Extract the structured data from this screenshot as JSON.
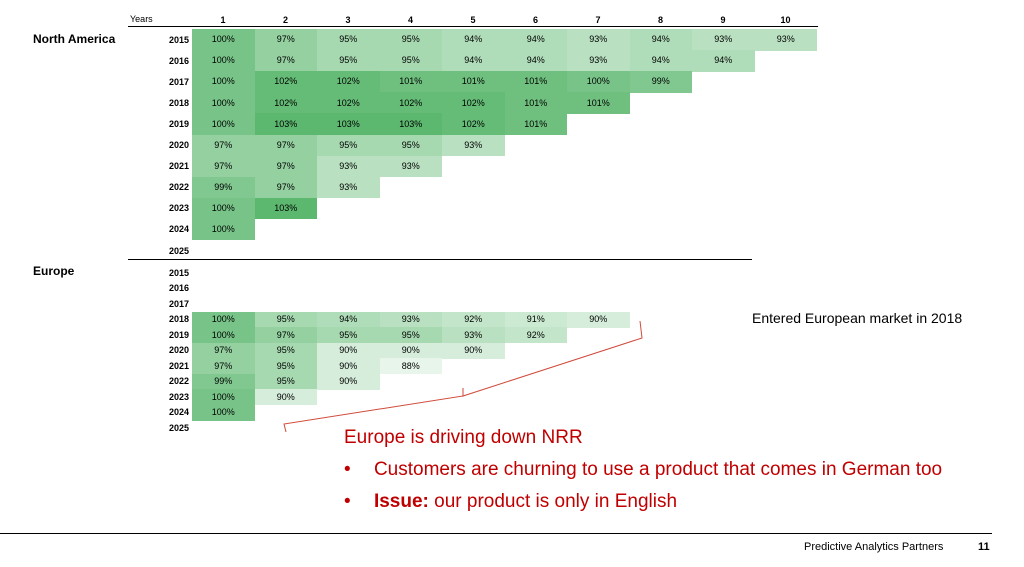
{
  "chart_data": {
    "type": "heatmap",
    "x_header": "Years",
    "columns": [
      "1",
      "2",
      "3",
      "4",
      "5",
      "6",
      "7",
      "8",
      "9",
      "10"
    ],
    "cohort_years": [
      "2015",
      "2016",
      "2017",
      "2018",
      "2019",
      "2020",
      "2021",
      "2022",
      "2023",
      "2024",
      "2025"
    ],
    "color_low": "#e8f5ea",
    "color_high": "#5cb86f",
    "value_range": [
      88,
      103
    ],
    "regions": [
      {
        "name": "North America",
        "rows": [
          {
            "year": "2015",
            "values": [
              100,
              97,
              95,
              95,
              94,
              94,
              93,
              94,
              93,
              93
            ]
          },
          {
            "year": "2016",
            "values": [
              100,
              97,
              95,
              95,
              94,
              94,
              93,
              94,
              94
            ]
          },
          {
            "year": "2017",
            "values": [
              100,
              102,
              102,
              101,
              101,
              101,
              100,
              99
            ]
          },
          {
            "year": "2018",
            "values": [
              100,
              102,
              102,
              102,
              102,
              101,
              101
            ]
          },
          {
            "year": "2019",
            "values": [
              100,
              103,
              103,
              103,
              102,
              101
            ]
          },
          {
            "year": "2020",
            "values": [
              97,
              97,
              95,
              95,
              93
            ]
          },
          {
            "year": "2021",
            "values": [
              97,
              97,
              93,
              93
            ]
          },
          {
            "year": "2022",
            "values": [
              99,
              97,
              93
            ]
          },
          {
            "year": "2023",
            "values": [
              100,
              103
            ]
          },
          {
            "year": "2024",
            "values": [
              100
            ]
          },
          {
            "year": "2025",
            "values": []
          }
        ]
      },
      {
        "name": "Europe",
        "rows": [
          {
            "year": "2015",
            "values": []
          },
          {
            "year": "2016",
            "values": []
          },
          {
            "year": "2017",
            "values": []
          },
          {
            "year": "2018",
            "values": [
              100,
              95,
              94,
              93,
              92,
              91,
              90
            ]
          },
          {
            "year": "2019",
            "values": [
              100,
              97,
              95,
              95,
              93,
              92
            ]
          },
          {
            "year": "2020",
            "values": [
              97,
              95,
              90,
              90,
              90
            ]
          },
          {
            "year": "2021",
            "values": [
              97,
              95,
              90,
              88
            ]
          },
          {
            "year": "2022",
            "values": [
              99,
              95,
              90
            ]
          },
          {
            "year": "2023",
            "values": [
              100,
              90
            ]
          },
          {
            "year": "2024",
            "values": [
              100
            ]
          },
          {
            "year": "2025",
            "values": []
          }
        ]
      }
    ]
  },
  "annotation": "Entered European market in 2018",
  "callout": {
    "headline": "Europe is driving down NRR",
    "bullet_char": "•",
    "bullet1": "Customers are churning to use a product that comes in German too",
    "bullet2_bold": "Issue:",
    "bullet2_rest": " our product is only in English",
    "color": "#c00000"
  },
  "footer": {
    "company": "Predictive Analytics Partners",
    "page": "11"
  }
}
